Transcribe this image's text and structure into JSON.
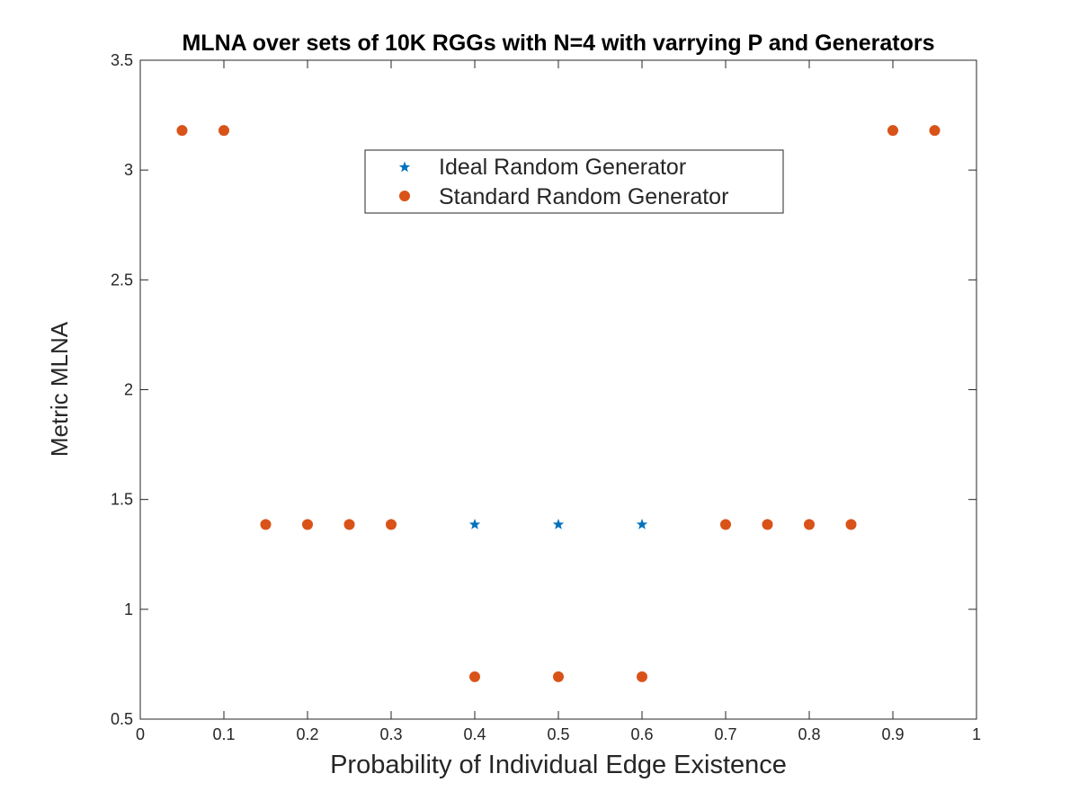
{
  "chart_data": {
    "type": "scatter",
    "title": "MLNA over sets of 10K RGGs with N=4 with varrying P and Generators",
    "xlabel": "Probability of Individual Edge Existence",
    "ylabel": "Metric MLNA",
    "xlim": [
      0,
      1
    ],
    "ylim": [
      0.5,
      3.5
    ],
    "x_ticks": [
      "0",
      "0.1",
      "0.2",
      "0.3",
      "0.4",
      "0.5",
      "0.6",
      "0.7",
      "0.8",
      "0.9",
      "1"
    ],
    "y_ticks": [
      "0.5",
      "1",
      "1.5",
      "2",
      "2.5",
      "3",
      "3.5"
    ],
    "grid": false,
    "legend_position": "top-center",
    "series": [
      {
        "name": "Ideal Random Generator",
        "marker": "star",
        "color": "#0072BD",
        "points": [
          {
            "x": 0.05,
            "y": 3.18
          },
          {
            "x": 0.1,
            "y": 3.18
          },
          {
            "x": 0.15,
            "y": 1.386
          },
          {
            "x": 0.2,
            "y": 1.386
          },
          {
            "x": 0.25,
            "y": 1.386
          },
          {
            "x": 0.3,
            "y": 1.386
          },
          {
            "x": 0.4,
            "y": 1.386
          },
          {
            "x": 0.5,
            "y": 1.386
          },
          {
            "x": 0.6,
            "y": 1.386
          },
          {
            "x": 0.7,
            "y": 1.386
          },
          {
            "x": 0.75,
            "y": 1.386
          },
          {
            "x": 0.8,
            "y": 1.386
          },
          {
            "x": 0.85,
            "y": 1.386
          },
          {
            "x": 0.9,
            "y": 3.18
          },
          {
            "x": 0.95,
            "y": 3.18
          }
        ]
      },
      {
        "name": "Standard Random Generator",
        "marker": "circle",
        "color": "#D95319",
        "points": [
          {
            "x": 0.05,
            "y": 3.18
          },
          {
            "x": 0.1,
            "y": 3.18
          },
          {
            "x": 0.15,
            "y": 1.386
          },
          {
            "x": 0.2,
            "y": 1.386
          },
          {
            "x": 0.25,
            "y": 1.386
          },
          {
            "x": 0.3,
            "y": 1.386
          },
          {
            "x": 0.4,
            "y": 0.693
          },
          {
            "x": 0.5,
            "y": 0.693
          },
          {
            "x": 0.6,
            "y": 0.693
          },
          {
            "x": 0.7,
            "y": 1.386
          },
          {
            "x": 0.75,
            "y": 1.386
          },
          {
            "x": 0.8,
            "y": 1.386
          },
          {
            "x": 0.85,
            "y": 1.386
          },
          {
            "x": 0.9,
            "y": 3.18
          },
          {
            "x": 0.95,
            "y": 3.18
          }
        ]
      }
    ]
  }
}
